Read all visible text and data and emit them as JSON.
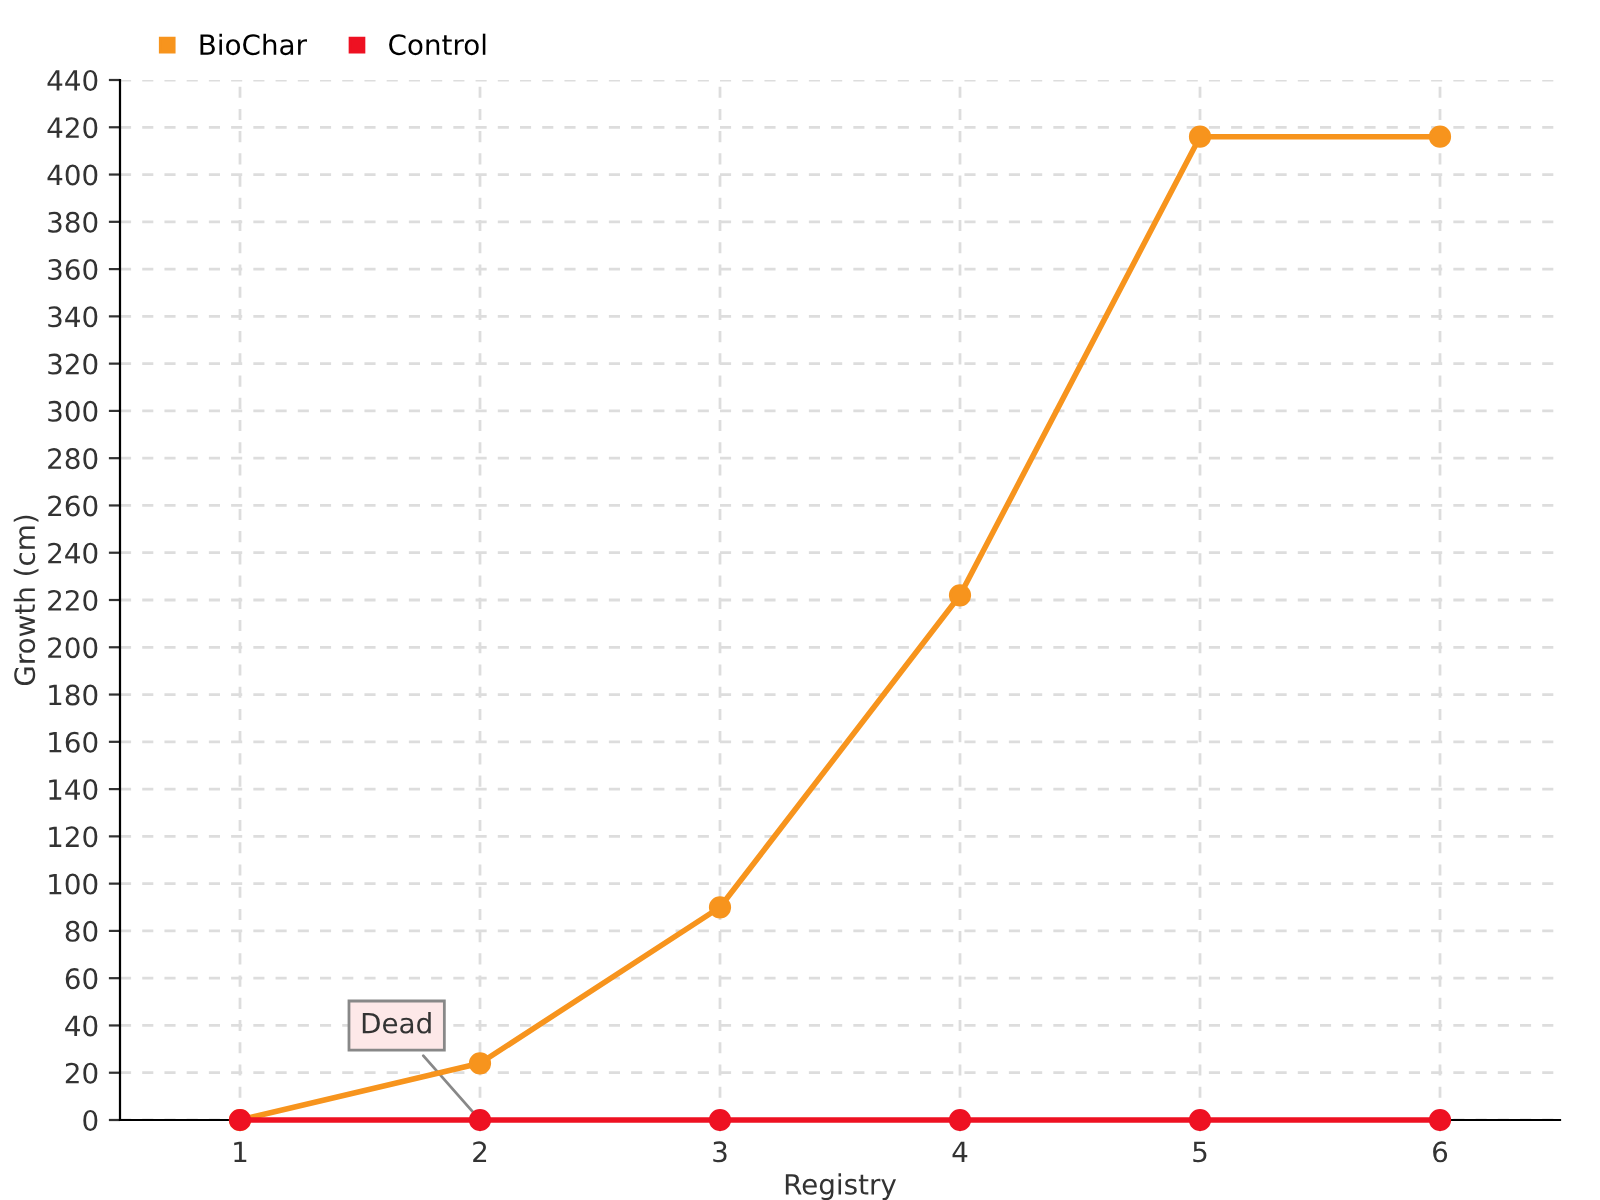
{
  "chart_data": {
    "type": "line",
    "xlabel": "Registry",
    "ylabel": "Growth (cm)",
    "categories": [
      "1",
      "2",
      "3",
      "4",
      "5",
      "6"
    ],
    "series": [
      {
        "name": "BioChar",
        "color": "#f7941d",
        "values": [
          0,
          24,
          90,
          222,
          416,
          416
        ]
      },
      {
        "name": "Control",
        "color": "#ee1122",
        "values": [
          0,
          0,
          0,
          0,
          0,
          0
        ]
      }
    ],
    "ylim": [
      0,
      440
    ],
    "yticks": [
      0,
      20,
      40,
      60,
      80,
      100,
      120,
      140,
      160,
      180,
      200,
      220,
      240,
      260,
      280,
      300,
      320,
      340,
      360,
      380,
      400,
      420,
      440
    ],
    "annotations": [
      {
        "text": "Dead",
        "x": "2",
        "y": 0
      }
    ],
    "grid": true,
    "legend": "top left",
    "marker": "circle",
    "line_style": "solid"
  }
}
